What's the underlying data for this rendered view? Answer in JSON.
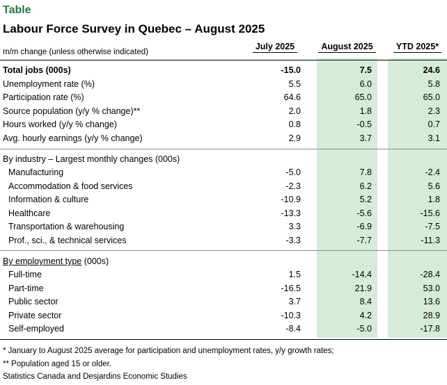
{
  "header": {
    "tag": "Table",
    "title": "Labour Force Survey in Quebec – August 2025",
    "subtitle": "m/m change (unless otherwise indicated)",
    "columns": [
      "July 2025",
      "August 2025",
      "YTD 2025*"
    ]
  },
  "rows_top": [
    {
      "label": "Total jobs (000s)",
      "values": [
        "-15.0",
        "7.5",
        "24.6"
      ],
      "bold": true
    },
    {
      "label": "Unemployment rate (%)",
      "values": [
        "5.5",
        "6.0",
        "5.8"
      ]
    },
    {
      "label": "Participation rate (%)",
      "values": [
        "64.6",
        "65.0",
        "65.0"
      ]
    },
    {
      "label": "Source population (y/y % change)**",
      "values": [
        "2.0",
        "1.8",
        "2.3"
      ]
    },
    {
      "label": "Hours worked (y/y % change)",
      "values": [
        "0.8",
        "-0.5",
        "0.7"
      ]
    },
    {
      "label": "Avg. hourly earnings (y/y % change)",
      "values": [
        "2.9",
        "3.7",
        "3.1"
      ]
    }
  ],
  "industry": {
    "heading": "By industry – Largest monthly changes (000s)",
    "rows": [
      {
        "label": "Manufacturing",
        "values": [
          "-5.0",
          "7.8",
          "-2.4"
        ]
      },
      {
        "label": "Accommodation & food services",
        "values": [
          "-2.3",
          "6.2",
          "5.6"
        ]
      },
      {
        "label": "Information & culture",
        "values": [
          "-10.9",
          "5.2",
          "1.8"
        ]
      },
      {
        "label": "Healthcare",
        "values": [
          "-13.3",
          "-5.6",
          "-15.6"
        ]
      },
      {
        "label": "Transportation & warehousing",
        "values": [
          "3.3",
          "-6.9",
          "-7.5"
        ]
      },
      {
        "label": "Prof., sci., & technical services",
        "values": [
          "-3.3",
          "-7.7",
          "-11.3"
        ]
      }
    ]
  },
  "employment": {
    "heading_underlined": "By employment type",
    "heading_rest": " (000s)",
    "rows": [
      {
        "label": "Full-time",
        "values": [
          "1.5",
          "-14.4",
          "-28.4"
        ]
      },
      {
        "label": "Part-time",
        "values": [
          "-16.5",
          "21.9",
          "53.0"
        ]
      },
      {
        "label": "Public sector",
        "values": [
          "3.7",
          "8.4",
          "13.6"
        ]
      },
      {
        "label": "Private sector",
        "values": [
          "-10.3",
          "4.2",
          "28.9"
        ]
      },
      {
        "label": "Self-employed",
        "values": [
          "-8.4",
          "-5.0",
          "-17.8"
        ]
      }
    ]
  },
  "footnotes": [
    "* January to August 2025 average for participation and unemployment rates, y/y growth rates;",
    "** Population aged 15 or older.",
    "Statistics Canada and Desjardins Economic Studies"
  ],
  "colors": {
    "accent_text": "#1f7a3a",
    "highlight_fill": "#d6ecdb"
  }
}
